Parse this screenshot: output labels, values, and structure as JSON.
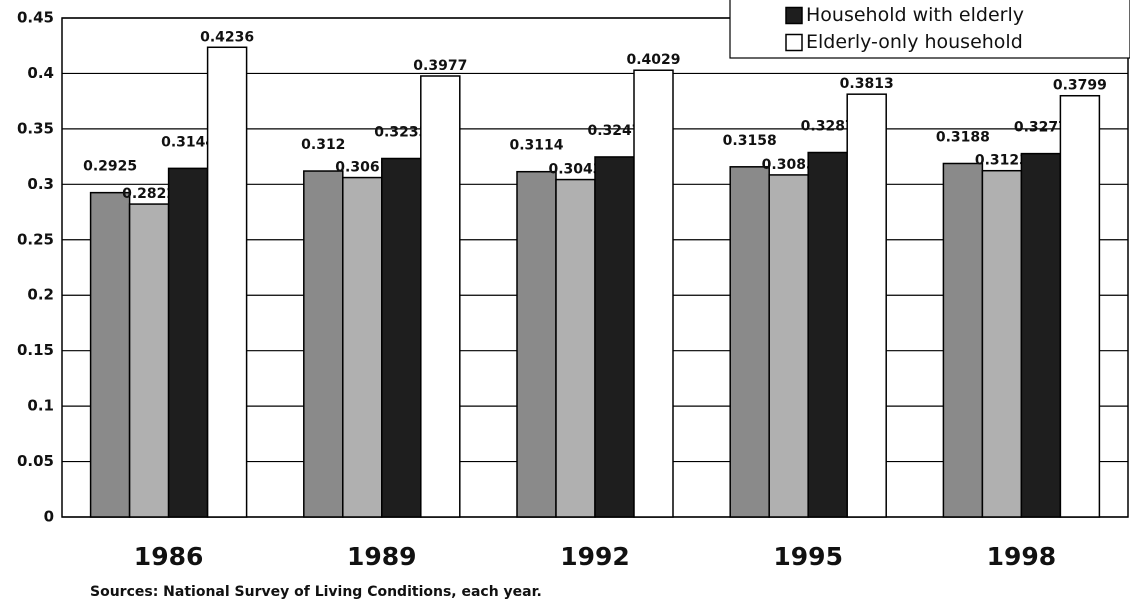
{
  "chart_data": {
    "type": "bar",
    "categories": [
      "1986",
      "1989",
      "1992",
      "1995",
      "1998"
    ],
    "series": [
      {
        "color": "#8a8a8a",
        "values": [
          0.2925,
          0.312,
          0.3114,
          0.3158,
          0.3188
        ]
      },
      {
        "color": "#b0b0b0",
        "values": [
          0.2822,
          0.3061,
          0.3043,
          0.3085,
          0.3123
        ]
      },
      {
        "name": "Household with elderly",
        "color": "#1e1e1e",
        "values": [
          0.3144,
          0.3233,
          0.3247,
          0.3287,
          0.3277
        ]
      },
      {
        "name": "Elderly-only household",
        "color": "#ffffff",
        "values": [
          0.4236,
          0.3977,
          0.4029,
          0.3813,
          0.3799
        ]
      }
    ],
    "ylim": [
      0,
      0.45
    ],
    "yticks": [
      0,
      0.05,
      0.1,
      0.15,
      0.2,
      0.25,
      0.3,
      0.35,
      0.4,
      0.45
    ],
    "grid": true,
    "legend": "top-right",
    "note": "Sources: National Survey of Living  Conditions, each year."
  }
}
